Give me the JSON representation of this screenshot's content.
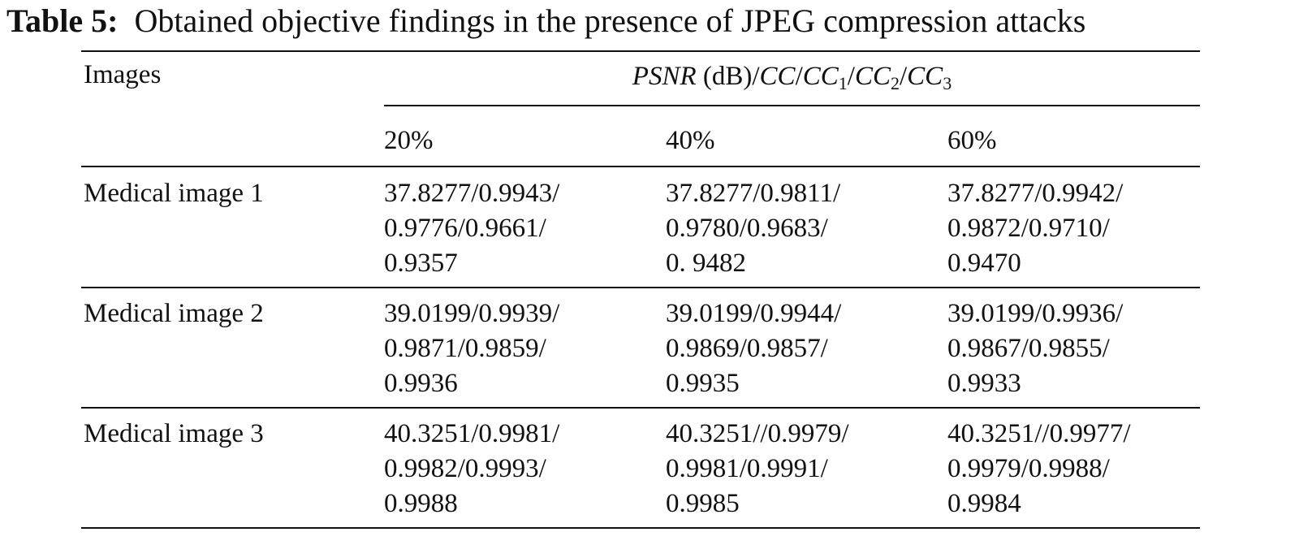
{
  "table": {
    "label": "Table 5:",
    "title": "Obtained objective findings in the presence of JPEG compression attacks",
    "first_header": "Images",
    "group_header": [
      "PSNR",
      " (dB)/",
      "CC",
      "/",
      "CC",
      "1",
      "/",
      "CC",
      "2",
      "/",
      "CC",
      "3"
    ],
    "columns": [
      "20%",
      "40%",
      "60%"
    ],
    "rows": [
      {
        "name": "Medical image 1",
        "cells": [
          [
            "37.8277/0.9943/",
            "0.9776/0.9661/",
            "0.9357"
          ],
          [
            "37.8277/0.9811/",
            "0.9780/0.9683/",
            "0. 9482"
          ],
          [
            "37.8277/0.9942/",
            "0.9872/0.9710/",
            "0.9470"
          ]
        ]
      },
      {
        "name": "Medical image 2",
        "cells": [
          [
            "39.0199/0.9939/",
            "0.9871/0.9859/",
            "0.9936"
          ],
          [
            "39.0199/0.9944/",
            "0.9869/0.9857/",
            "0.9935"
          ],
          [
            "39.0199/0.9936/",
            "0.9867/0.9855/",
            "0.9933"
          ]
        ]
      },
      {
        "name": "Medical image 3",
        "cells": [
          [
            "40.3251/0.9981/",
            "0.9982/0.9993/",
            "0.9988"
          ],
          [
            "40.3251//0.9979/",
            "0.9981/0.9991/",
            "0.9985"
          ],
          [
            "40.3251//0.9977/",
            "0.9979/0.9988/",
            "0.9984"
          ]
        ]
      }
    ]
  }
}
